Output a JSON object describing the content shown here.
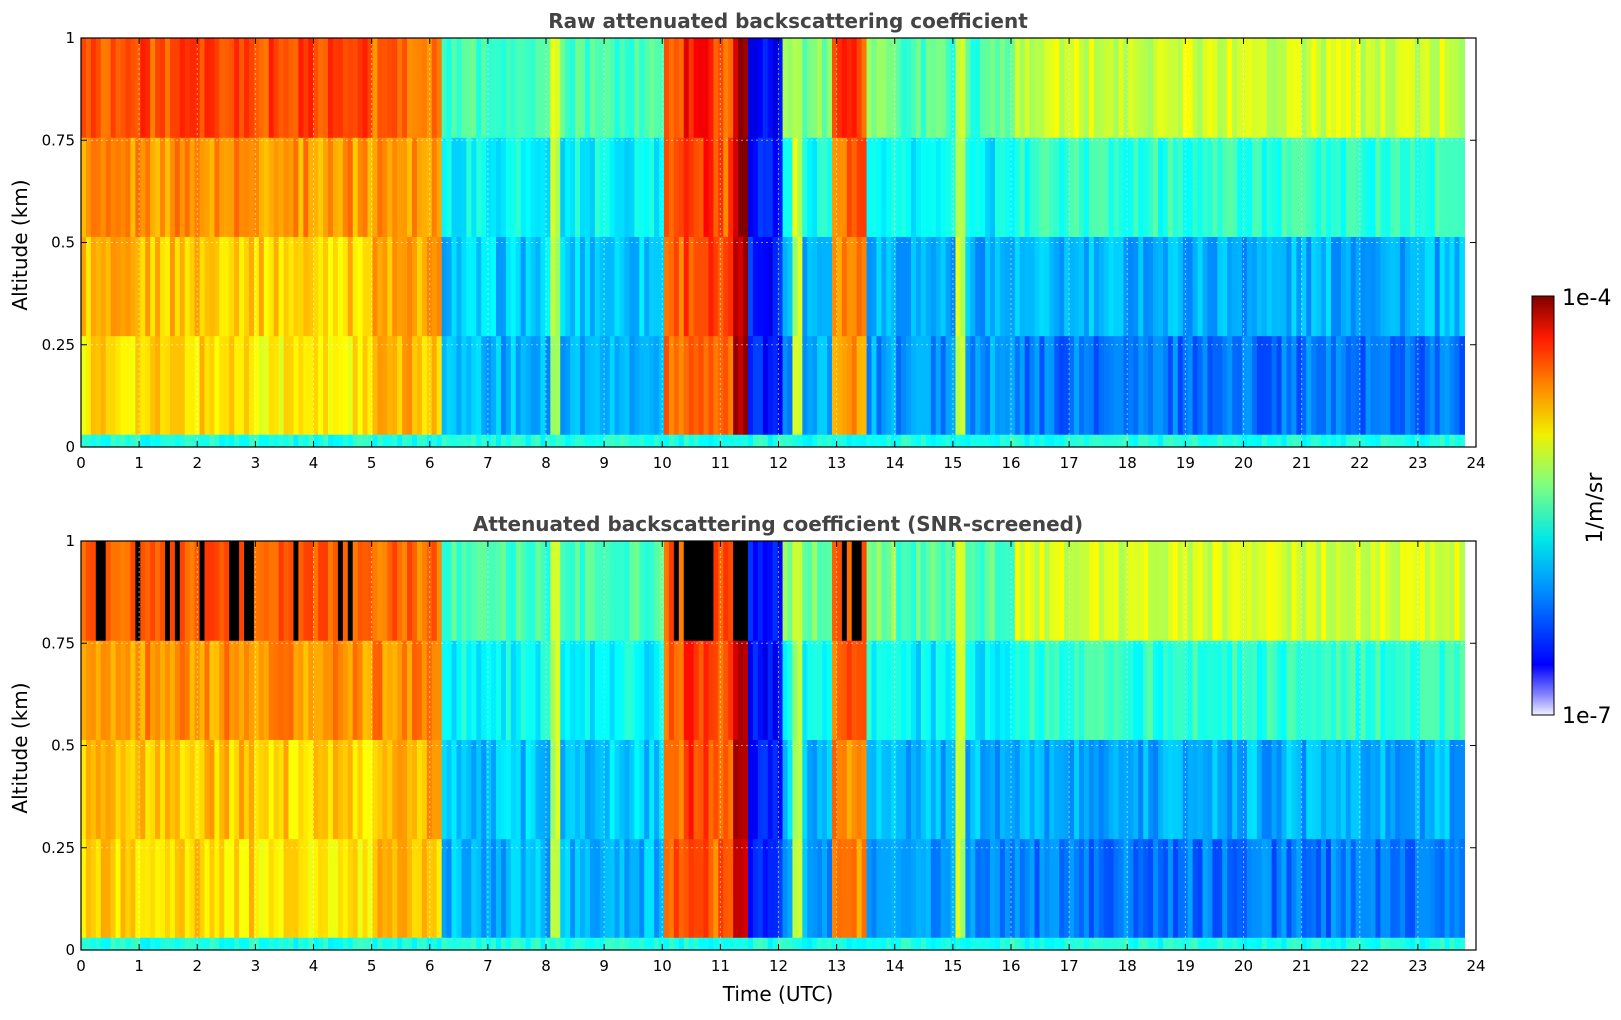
{
  "chart_data": [
    {
      "type": "heatmap",
      "title": "Raw attenuated backscattering coefficient",
      "xlabel": "",
      "ylabel": "Altitude (km)",
      "xlim": [
        0,
        24
      ],
      "ylim": [
        0,
        1
      ],
      "xticks": [
        "0",
        "1",
        "2",
        "3",
        "4",
        "5",
        "6",
        "7",
        "8",
        "9",
        "10",
        "11",
        "12",
        "13",
        "14",
        "15",
        "16",
        "17",
        "18",
        "19",
        "20",
        "21",
        "22",
        "23",
        "24"
      ],
      "yticks": [
        "0",
        "0.25",
        "0.5",
        "0.75",
        "1"
      ],
      "grid": true,
      "colormap": "jet",
      "z_scale": "log",
      "screened": false
    },
    {
      "type": "heatmap",
      "title": "Attenuated backscattering coefficient (SNR-screened)",
      "xlabel": "Time (UTC)",
      "ylabel": "Altitude (km)",
      "xlim": [
        0,
        24
      ],
      "ylim": [
        0,
        1
      ],
      "xticks": [
        "0",
        "1",
        "2",
        "3",
        "4",
        "5",
        "6",
        "7",
        "8",
        "9",
        "10",
        "11",
        "12",
        "13",
        "14",
        "15",
        "16",
        "17",
        "18",
        "19",
        "20",
        "21",
        "22",
        "23",
        "24"
      ],
      "yticks": [
        "0",
        "0.25",
        "0.5",
        "0.75",
        "1"
      ],
      "grid": true,
      "colormap": "jet",
      "z_scale": "log",
      "screened": true
    }
  ],
  "colorbar": {
    "max_label": "1e-4",
    "min_label": "1e-7",
    "label": "1/m/sr",
    "colors": [
      "#e8e8ff",
      "#0000ff",
      "#0090ff",
      "#00e8e8",
      "#7fff7f",
      "#e8e800",
      "#ff8c00",
      "#ff1a00",
      "#800000"
    ]
  }
}
